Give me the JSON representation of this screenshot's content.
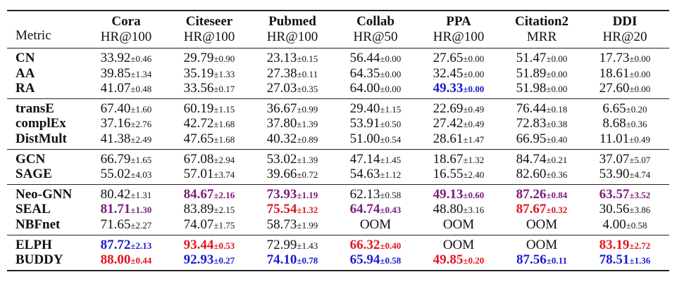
{
  "colors": {
    "red": "#e0141e",
    "blue": "#1a1ad0",
    "purple": "#7a1a7a"
  },
  "header": {
    "metric_label": "Metric",
    "columns": [
      {
        "name": "Cora",
        "metric": "HR@100"
      },
      {
        "name": "Citeseer",
        "metric": "HR@100"
      },
      {
        "name": "Pubmed",
        "metric": "HR@100"
      },
      {
        "name": "Collab",
        "metric": "HR@50"
      },
      {
        "name": "PPA",
        "metric": "HR@100"
      },
      {
        "name": "Citation2",
        "metric": "MRR"
      },
      {
        "name": "DDI",
        "metric": "HR@20"
      }
    ]
  },
  "groups": [
    {
      "rows": [
        {
          "method": "CN",
          "cells": [
            [
              "33.92",
              "±0.46",
              ""
            ],
            [
              "29.79",
              "±0.90",
              ""
            ],
            [
              "23.13",
              "±0.15",
              ""
            ],
            [
              "56.44",
              "±0.00",
              ""
            ],
            [
              "27.65",
              "±0.00",
              ""
            ],
            [
              "51.47",
              "±0.00",
              ""
            ],
            [
              "17.73",
              "±0.00",
              ""
            ]
          ]
        },
        {
          "method": "AA",
          "cells": [
            [
              "39.85",
              "±1.34",
              ""
            ],
            [
              "35.19",
              "±1.33",
              ""
            ],
            [
              "27.38",
              "±0.11",
              ""
            ],
            [
              "64.35",
              "±0.00",
              ""
            ],
            [
              "32.45",
              "±0.00",
              ""
            ],
            [
              "51.89",
              "±0.00",
              ""
            ],
            [
              "18.61",
              "±0.00",
              ""
            ]
          ]
        },
        {
          "method": "RA",
          "cells": [
            [
              "41.07",
              "±0.48",
              ""
            ],
            [
              "33.56",
              "±0.17",
              ""
            ],
            [
              "27.03",
              "±0.35",
              ""
            ],
            [
              "64.00",
              "±0.00",
              ""
            ],
            [
              "49.33",
              "±0.00",
              "blue"
            ],
            [
              "51.98",
              "±0.00",
              ""
            ],
            [
              "27.60",
              "±0.00",
              ""
            ]
          ]
        }
      ]
    },
    {
      "rows": [
        {
          "method": "transE",
          "cells": [
            [
              "67.40",
              "±1.60",
              ""
            ],
            [
              "60.19",
              "±1.15",
              ""
            ],
            [
              "36.67",
              "±0.99",
              ""
            ],
            [
              "29.40",
              "±1.15",
              ""
            ],
            [
              "22.69",
              "±0.49",
              ""
            ],
            [
              "76.44",
              "±0.18",
              ""
            ],
            [
              "6.65",
              "±0.20",
              ""
            ]
          ]
        },
        {
          "method": "complEx",
          "cells": [
            [
              "37.16",
              "±2.76",
              ""
            ],
            [
              "42.72",
              "±1.68",
              ""
            ],
            [
              "37.80",
              "±1.39",
              ""
            ],
            [
              "53.91",
              "±0.50",
              ""
            ],
            [
              "27.42",
              "±0.49",
              ""
            ],
            [
              "72.83",
              "±0.38",
              ""
            ],
            [
              "8.68",
              "±0.36",
              ""
            ]
          ]
        },
        {
          "method": "DistMult",
          "cells": [
            [
              "41.38",
              "±2.49",
              ""
            ],
            [
              "47.65",
              "±1.68",
              ""
            ],
            [
              "40.32",
              "±0.89",
              ""
            ],
            [
              "51.00",
              "±0.54",
              ""
            ],
            [
              "28.61",
              "±1.47",
              ""
            ],
            [
              "66.95",
              "±0.40",
              ""
            ],
            [
              "11.01",
              "±0.49",
              ""
            ]
          ]
        }
      ]
    },
    {
      "rows": [
        {
          "method": "GCN",
          "cells": [
            [
              "66.79",
              "±1.65",
              ""
            ],
            [
              "67.08",
              "±2.94",
              ""
            ],
            [
              "53.02",
              "±1.39",
              ""
            ],
            [
              "47.14",
              "±1.45",
              ""
            ],
            [
              "18.67",
              "±1.32",
              ""
            ],
            [
              "84.74",
              "±0.21",
              ""
            ],
            [
              "37.07",
              "±5.07",
              ""
            ]
          ]
        },
        {
          "method": "SAGE",
          "cells": [
            [
              "55.02",
              "±4.03",
              ""
            ],
            [
              "57.01",
              "±3.74",
              ""
            ],
            [
              "39.66",
              "±0.72",
              ""
            ],
            [
              "54.63",
              "±1.12",
              ""
            ],
            [
              "16.55",
              "±2.40",
              ""
            ],
            [
              "82.60",
              "±0.36",
              ""
            ],
            [
              "53.90",
              "±4.74",
              ""
            ]
          ]
        }
      ]
    },
    {
      "rows": [
        {
          "method": "Neo-GNN",
          "cells": [
            [
              "80.42",
              "±1.31",
              ""
            ],
            [
              "84.67",
              "±2.16",
              "purple"
            ],
            [
              "73.93",
              "±1.19",
              "purple"
            ],
            [
              "62.13",
              "±0.58",
              ""
            ],
            [
              "49.13",
              "±0.60",
              "purple"
            ],
            [
              "87.26",
              "±0.84",
              "purple"
            ],
            [
              "63.57",
              "±3.52",
              "purple"
            ]
          ]
        },
        {
          "method": "SEAL",
          "cells": [
            [
              "81.71",
              "±1.30",
              "purple"
            ],
            [
              "83.89",
              "±2.15",
              ""
            ],
            [
              "75.54",
              "±1.32",
              "red"
            ],
            [
              "64.74",
              "±0.43",
              "purple"
            ],
            [
              "48.80",
              "±3.16",
              ""
            ],
            [
              "87.67",
              "±0.32",
              "red"
            ],
            [
              "30.56",
              "±3.86",
              ""
            ]
          ]
        },
        {
          "method": "NBFnet",
          "cells": [
            [
              "71.65",
              "±2.27",
              ""
            ],
            [
              "74.07",
              "±1.75",
              ""
            ],
            [
              "58.73",
              "±1.99",
              ""
            ],
            [
              "OOM",
              "",
              ""
            ],
            [
              "OOM",
              "",
              ""
            ],
            [
              "OOM",
              "",
              ""
            ],
            [
              "4.00",
              "±0.58",
              ""
            ]
          ]
        }
      ]
    },
    {
      "rows": [
        {
          "method": "ELPH",
          "cells": [
            [
              "87.72",
              "±2.13",
              "blue"
            ],
            [
              "93.44",
              "±0.53",
              "red"
            ],
            [
              "72.99",
              "±1.43",
              ""
            ],
            [
              "66.32",
              "±0.40",
              "red"
            ],
            [
              "OOM",
              "",
              ""
            ],
            [
              "OOM",
              "",
              ""
            ],
            [
              "83.19",
              "±2.72",
              "red"
            ]
          ]
        },
        {
          "method": "BUDDY",
          "cells": [
            [
              "88.00",
              "±0.44",
              "red"
            ],
            [
              "92.93",
              "±0.27",
              "blue"
            ],
            [
              "74.10",
              "±0.78",
              "blue"
            ],
            [
              "65.94",
              "±0.58",
              "blue"
            ],
            [
              "49.85",
              "±0.20",
              "red"
            ],
            [
              "87.56",
              "±0.11",
              "blue"
            ],
            [
              "78.51",
              "±1.36",
              "blue"
            ]
          ]
        }
      ]
    }
  ]
}
